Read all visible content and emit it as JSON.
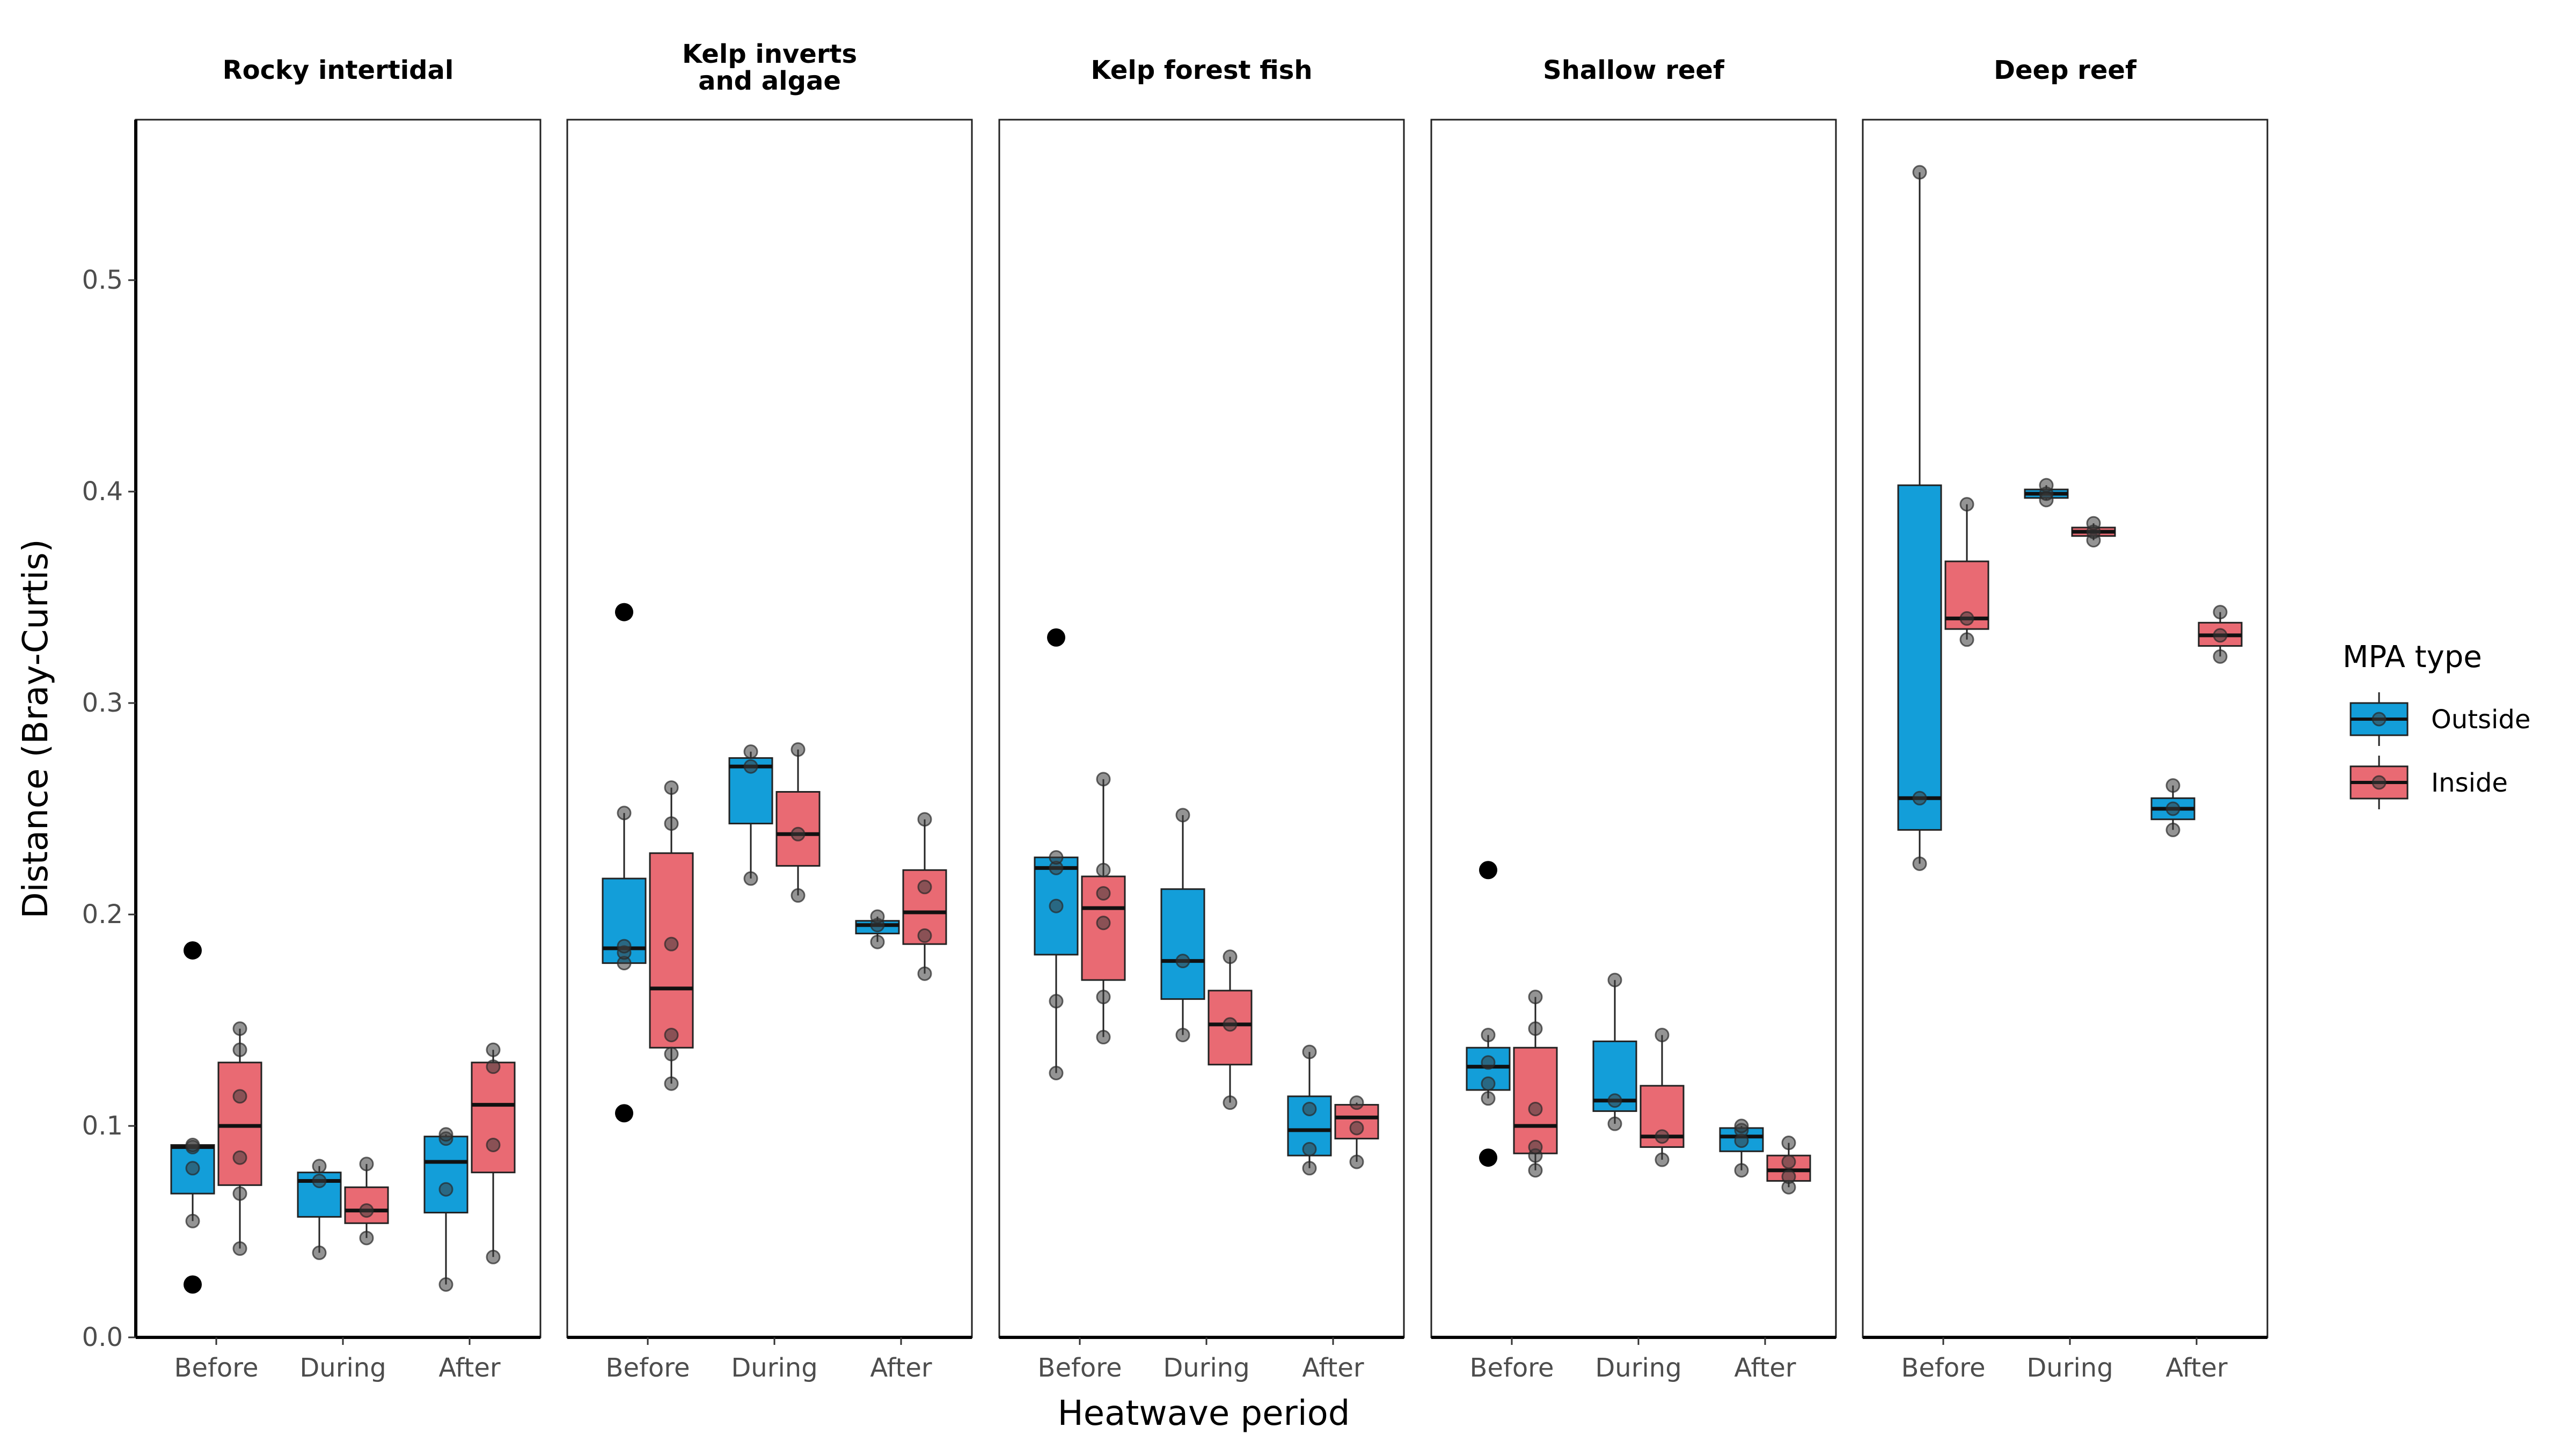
{
  "chart_data": {
    "type": "boxplot",
    "xlabel": "Heatwave period",
    "ylabel": "Distance (Bray-Curtis)",
    "ylim": [
      0,
      0.56
    ],
    "yticks": [
      0.0,
      0.1,
      0.2,
      0.3,
      0.4,
      0.5
    ],
    "ytick_labels": [
      "0.0",
      "0.1",
      "0.2",
      "0.3",
      "0.4",
      "0.5"
    ],
    "categories": [
      "Before",
      "During",
      "After"
    ],
    "legend": {
      "title": "MPA type",
      "position": "right",
      "entries": [
        {
          "name": "Outside",
          "color": "#139ED9"
        },
        {
          "name": "Inside",
          "color": "#E96A73"
        }
      ]
    },
    "grid": false,
    "panels": [
      {
        "title": "Rocky intertidal",
        "groups": [
          {
            "period": "Before",
            "mpa": "Outside",
            "q1": 0.068,
            "median": 0.09,
            "q3": 0.091,
            "lower": 0.055,
            "upper": 0.091,
            "outliers": [
              0.183,
              0.025
            ],
            "points": [
              0.055,
              0.08,
              0.09,
              0.091
            ]
          },
          {
            "period": "Before",
            "mpa": "Inside",
            "q1": 0.072,
            "median": 0.1,
            "q3": 0.13,
            "lower": 0.042,
            "upper": 0.146,
            "outliers": [],
            "points": [
              0.042,
              0.068,
              0.085,
              0.114,
              0.136,
              0.146
            ]
          },
          {
            "period": "During",
            "mpa": "Outside",
            "q1": 0.057,
            "median": 0.074,
            "q3": 0.078,
            "lower": 0.04,
            "upper": 0.081,
            "outliers": [],
            "points": [
              0.04,
              0.074,
              0.081
            ]
          },
          {
            "period": "During",
            "mpa": "Inside",
            "q1": 0.054,
            "median": 0.06,
            "q3": 0.071,
            "lower": 0.047,
            "upper": 0.082,
            "outliers": [],
            "points": [
              0.047,
              0.06,
              0.082
            ]
          },
          {
            "period": "After",
            "mpa": "Outside",
            "q1": 0.059,
            "median": 0.083,
            "q3": 0.095,
            "lower": 0.025,
            "upper": 0.096,
            "outliers": [],
            "points": [
              0.025,
              0.07,
              0.094,
              0.096
            ]
          },
          {
            "period": "After",
            "mpa": "Inside",
            "q1": 0.078,
            "median": 0.11,
            "q3": 0.13,
            "lower": 0.038,
            "upper": 0.136,
            "outliers": [],
            "points": [
              0.038,
              0.091,
              0.128,
              0.136
            ]
          }
        ]
      },
      {
        "title": "Kelp inverts\nand algae",
        "groups": [
          {
            "period": "Before",
            "mpa": "Outside",
            "q1": 0.177,
            "median": 0.184,
            "q3": 0.217,
            "lower": 0.177,
            "upper": 0.248,
            "outliers": [
              0.343,
              0.106
            ],
            "points": [
              0.177,
              0.182,
              0.185,
              0.248
            ]
          },
          {
            "period": "Before",
            "mpa": "Inside",
            "q1": 0.137,
            "median": 0.165,
            "q3": 0.229,
            "lower": 0.12,
            "upper": 0.26,
            "outliers": [],
            "points": [
              0.12,
              0.134,
              0.143,
              0.186,
              0.243,
              0.26
            ]
          },
          {
            "period": "During",
            "mpa": "Outside",
            "q1": 0.243,
            "median": 0.27,
            "q3": 0.274,
            "lower": 0.217,
            "upper": 0.277,
            "outliers": [],
            "points": [
              0.217,
              0.27,
              0.277
            ]
          },
          {
            "period": "During",
            "mpa": "Inside",
            "q1": 0.223,
            "median": 0.238,
            "q3": 0.258,
            "lower": 0.209,
            "upper": 0.278,
            "outliers": [],
            "points": [
              0.209,
              0.238,
              0.278
            ]
          },
          {
            "period": "After",
            "mpa": "Outside",
            "q1": 0.191,
            "median": 0.195,
            "q3": 0.197,
            "lower": 0.187,
            "upper": 0.199,
            "outliers": [],
            "points": [
              0.187,
              0.195,
              0.199
            ]
          },
          {
            "period": "After",
            "mpa": "Inside",
            "q1": 0.186,
            "median": 0.201,
            "q3": 0.221,
            "lower": 0.172,
            "upper": 0.245,
            "outliers": [],
            "points": [
              0.172,
              0.19,
              0.213,
              0.245
            ]
          }
        ]
      },
      {
        "title": "Kelp forest fish",
        "groups": [
          {
            "period": "Before",
            "mpa": "Outside",
            "q1": 0.181,
            "median": 0.222,
            "q3": 0.227,
            "lower": 0.125,
            "upper": 0.227,
            "outliers": [
              0.331
            ],
            "points": [
              0.125,
              0.159,
              0.204,
              0.222,
              0.227
            ]
          },
          {
            "period": "Before",
            "mpa": "Inside",
            "q1": 0.169,
            "median": 0.203,
            "q3": 0.218,
            "lower": 0.142,
            "upper": 0.264,
            "outliers": [],
            "points": [
              0.142,
              0.161,
              0.196,
              0.21,
              0.221,
              0.264
            ]
          },
          {
            "period": "During",
            "mpa": "Outside",
            "q1": 0.16,
            "median": 0.178,
            "q3": 0.212,
            "lower": 0.143,
            "upper": 0.247,
            "outliers": [],
            "points": [
              0.143,
              0.178,
              0.247
            ]
          },
          {
            "period": "During",
            "mpa": "Inside",
            "q1": 0.129,
            "median": 0.148,
            "q3": 0.164,
            "lower": 0.111,
            "upper": 0.18,
            "outliers": [],
            "points": [
              0.111,
              0.148,
              0.18
            ]
          },
          {
            "period": "After",
            "mpa": "Outside",
            "q1": 0.086,
            "median": 0.098,
            "q3": 0.114,
            "lower": 0.08,
            "upper": 0.135,
            "outliers": [],
            "points": [
              0.08,
              0.089,
              0.108,
              0.135
            ]
          },
          {
            "period": "After",
            "mpa": "Inside",
            "q1": 0.094,
            "median": 0.104,
            "q3": 0.11,
            "lower": 0.083,
            "upper": 0.111,
            "outliers": [],
            "points": [
              0.083,
              0.099,
              0.111
            ]
          }
        ]
      },
      {
        "title": "Shallow reef",
        "groups": [
          {
            "period": "Before",
            "mpa": "Outside",
            "q1": 0.117,
            "median": 0.128,
            "q3": 0.137,
            "lower": 0.113,
            "upper": 0.143,
            "outliers": [
              0.221,
              0.085
            ],
            "points": [
              0.113,
              0.12,
              0.13,
              0.143
            ]
          },
          {
            "period": "Before",
            "mpa": "Inside",
            "q1": 0.087,
            "median": 0.1,
            "q3": 0.137,
            "lower": 0.079,
            "upper": 0.161,
            "outliers": [],
            "points": [
              0.079,
              0.086,
              0.09,
              0.108,
              0.146,
              0.161
            ]
          },
          {
            "period": "During",
            "mpa": "Outside",
            "q1": 0.107,
            "median": 0.112,
            "q3": 0.14,
            "lower": 0.101,
            "upper": 0.169,
            "outliers": [],
            "points": [
              0.101,
              0.112,
              0.169
            ]
          },
          {
            "period": "During",
            "mpa": "Inside",
            "q1": 0.09,
            "median": 0.095,
            "q3": 0.119,
            "lower": 0.084,
            "upper": 0.143,
            "outliers": [],
            "points": [
              0.084,
              0.095,
              0.143
            ]
          },
          {
            "period": "After",
            "mpa": "Outside",
            "q1": 0.088,
            "median": 0.095,
            "q3": 0.099,
            "lower": 0.079,
            "upper": 0.1,
            "outliers": [],
            "points": [
              0.079,
              0.093,
              0.098,
              0.1
            ]
          },
          {
            "period": "After",
            "mpa": "Inside",
            "q1": 0.074,
            "median": 0.079,
            "q3": 0.086,
            "lower": 0.071,
            "upper": 0.092,
            "outliers": [],
            "points": [
              0.071,
              0.076,
              0.083,
              0.092
            ]
          }
        ]
      },
      {
        "title": "Deep reef",
        "groups": [
          {
            "period": "Before",
            "mpa": "Outside",
            "q1": 0.24,
            "median": 0.255,
            "q3": 0.403,
            "lower": 0.224,
            "upper": 0.551,
            "outliers": [],
            "points": [
              0.224,
              0.255,
              0.551
            ]
          },
          {
            "period": "Before",
            "mpa": "Inside",
            "q1": 0.335,
            "median": 0.34,
            "q3": 0.367,
            "lower": 0.33,
            "upper": 0.394,
            "outliers": [],
            "points": [
              0.33,
              0.34,
              0.394
            ]
          },
          {
            "period": "During",
            "mpa": "Outside",
            "q1": 0.397,
            "median": 0.399,
            "q3": 0.401,
            "lower": 0.396,
            "upper": 0.403,
            "outliers": [],
            "points": [
              0.396,
              0.399,
              0.403
            ]
          },
          {
            "period": "During",
            "mpa": "Inside",
            "q1": 0.379,
            "median": 0.381,
            "q3": 0.383,
            "lower": 0.377,
            "upper": 0.385,
            "outliers": [],
            "points": [
              0.377,
              0.381,
              0.385
            ]
          },
          {
            "period": "After",
            "mpa": "Outside",
            "q1": 0.245,
            "median": 0.25,
            "q3": 0.255,
            "lower": 0.24,
            "upper": 0.261,
            "outliers": [],
            "points": [
              0.24,
              0.25,
              0.261
            ]
          },
          {
            "period": "After",
            "mpa": "Inside",
            "q1": 0.327,
            "median": 0.332,
            "q3": 0.338,
            "lower": 0.322,
            "upper": 0.343,
            "outliers": [],
            "points": [
              0.322,
              0.332,
              0.343
            ]
          }
        ]
      }
    ]
  }
}
